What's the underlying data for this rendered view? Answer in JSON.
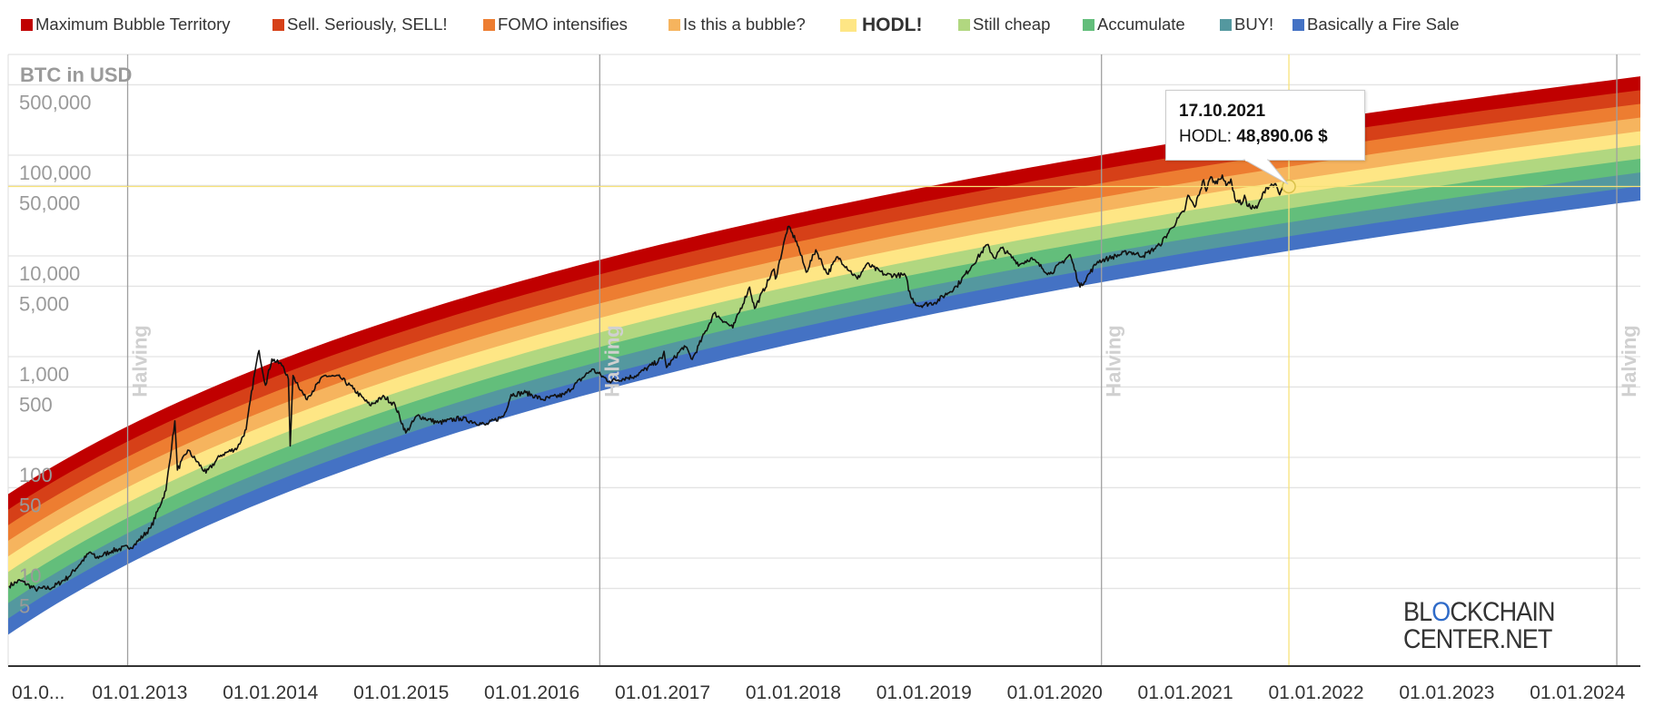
{
  "legend": [
    {
      "label": "Maximum Bubble Territory",
      "color": "#c00000"
    },
    {
      "label": "Sell. Seriously, SELL!",
      "color": "#d64018"
    },
    {
      "label": "FOMO intensifies",
      "color": "#ed7d31"
    },
    {
      "label": "Is this a bubble?",
      "color": "#f6b45e"
    },
    {
      "label": "HODL!",
      "color": "#fee685"
    },
    {
      "label": "Still cheap",
      "color": "#b1d780"
    },
    {
      "label": "Accumulate",
      "color": "#63be7b"
    },
    {
      "label": "BUY!",
      "color": "#54989f"
    },
    {
      "label": "Basically a Fire Sale",
      "color": "#4472c4"
    }
  ],
  "tooltip": {
    "date": "17.10.2021",
    "series": "HODL:",
    "value": "48,890.06 $"
  },
  "logo": {
    "line1_a": "BL",
    "line1_o": "O",
    "line1_b": "CKCHAIN",
    "line2": "CENTER.NET"
  },
  "chart_data": {
    "type": "line",
    "title": "",
    "ylabel": "BTC in USD",
    "yscale": "log",
    "ylim": [
      0.85,
      1000000
    ],
    "xlim": [
      "2012-01-01",
      "2024-06-25"
    ],
    "yticks": [
      {
        "label": "500,000",
        "value": 500000
      },
      {
        "label": "100,000",
        "value": 100000
      },
      {
        "label": "50,000",
        "value": 50000
      },
      {
        "label": "10,000",
        "value": 10000
      },
      {
        "label": "5,000",
        "value": 5000
      },
      {
        "label": "1,000",
        "value": 1000
      },
      {
        "label": "500",
        "value": 500
      },
      {
        "label": "100",
        "value": 100
      },
      {
        "label": "50",
        "value": 50
      },
      {
        "label": "10",
        "value": 10
      },
      {
        "label": "5",
        "value": 5
      }
    ],
    "xticks": [
      {
        "label": "01.0...",
        "date": "2012-01-01"
      },
      {
        "label": "01.01.2013",
        "date": "2013-01-01"
      },
      {
        "label": "01.01.2014",
        "date": "2014-01-01"
      },
      {
        "label": "01.01.2015",
        "date": "2015-01-01"
      },
      {
        "label": "01.01.2016",
        "date": "2016-01-01"
      },
      {
        "label": "01.01.2017",
        "date": "2017-01-01"
      },
      {
        "label": "01.01.2018",
        "date": "2018-01-01"
      },
      {
        "label": "01.01.2019",
        "date": "2019-01-01"
      },
      {
        "label": "01.01.2020",
        "date": "2020-01-01"
      },
      {
        "label": "01.01.2021",
        "date": "2021-01-01"
      },
      {
        "label": "01.01.2022",
        "date": "2022-01-01"
      },
      {
        "label": "01.01.2023",
        "date": "2023-01-01"
      },
      {
        "label": "01.01.2024",
        "date": "2024-01-01"
      }
    ],
    "halvings": [
      {
        "label": "Halving",
        "date": "2012-11-28"
      },
      {
        "label": "Halving",
        "date": "2016-07-09"
      },
      {
        "label": "Halving",
        "date": "2020-05-11"
      },
      {
        "label": "Halving",
        "date": "2024-04-20"
      }
    ],
    "highlight": {
      "date": "2021-10-17",
      "value": 48890.06,
      "color": "#f7e27a"
    },
    "price_series": [
      [
        "2012-01-01",
        5.3
      ],
      [
        "2012-02-01",
        6
      ],
      [
        "2012-03-15",
        4.9
      ],
      [
        "2012-05-01",
        5.1
      ],
      [
        "2012-06-15",
        6.5
      ],
      [
        "2012-08-15",
        11.5
      ],
      [
        "2012-09-01",
        10
      ],
      [
        "2012-10-15",
        11.8
      ],
      [
        "2012-12-15",
        13.3
      ],
      [
        "2013-02-01",
        20
      ],
      [
        "2013-03-15",
        47
      ],
      [
        "2013-04-09",
        230
      ],
      [
        "2013-04-16",
        75
      ],
      [
        "2013-05-15",
        118
      ],
      [
        "2013-07-05",
        70
      ],
      [
        "2013-08-15",
        105
      ],
      [
        "2013-10-01",
        125
      ],
      [
        "2013-10-25",
        190
      ],
      [
        "2013-11-18",
        700
      ],
      [
        "2013-11-30",
        1150
      ],
      [
        "2013-12-18",
        520
      ],
      [
        "2014-01-05",
        950
      ],
      [
        "2014-02-05",
        810
      ],
      [
        "2014-02-20",
        600
      ],
      [
        "2014-02-25",
        130
      ],
      [
        "2014-03-05",
        650
      ],
      [
        "2014-04-10",
        380
      ],
      [
        "2014-06-01",
        650
      ],
      [
        "2014-07-15",
        620
      ],
      [
        "2014-08-20",
        480
      ],
      [
        "2014-10-05",
        330
      ],
      [
        "2014-11-15",
        400
      ],
      [
        "2014-12-15",
        330
      ],
      [
        "2015-01-14",
        175
      ],
      [
        "2015-02-15",
        260
      ],
      [
        "2015-04-15",
        220
      ],
      [
        "2015-06-15",
        245
      ],
      [
        "2015-08-25",
        210
      ],
      [
        "2015-10-15",
        260
      ],
      [
        "2015-11-04",
        420
      ],
      [
        "2015-12-15",
        440
      ],
      [
        "2016-02-01",
        375
      ],
      [
        "2016-04-01",
        420
      ],
      [
        "2016-06-17",
        750
      ],
      [
        "2016-08-05",
        570
      ],
      [
        "2016-10-15",
        640
      ],
      [
        "2016-12-31",
        960
      ],
      [
        "2017-01-05",
        1130
      ],
      [
        "2017-01-12",
        780
      ],
      [
        "2017-03-03",
        1280
      ],
      [
        "2017-03-25",
        940
      ],
      [
        "2017-05-25",
        2700
      ],
      [
        "2017-07-16",
        1930
      ],
      [
        "2017-09-01",
        4900
      ],
      [
        "2017-09-15",
        3000
      ],
      [
        "2017-11-08",
        7400
      ],
      [
        "2017-11-12",
        5900
      ],
      [
        "2017-12-17",
        19500
      ],
      [
        "2018-01-10",
        14000
      ],
      [
        "2018-02-06",
        6900
      ],
      [
        "2018-03-05",
        11500
      ],
      [
        "2018-04-06",
        6600
      ],
      [
        "2018-05-05",
        9800
      ],
      [
        "2018-06-29",
        5900
      ],
      [
        "2018-07-25",
        8300
      ],
      [
        "2018-09-15",
        6500
      ],
      [
        "2018-11-10",
        6400
      ],
      [
        "2018-11-25",
        3900
      ],
      [
        "2018-12-15",
        3200
      ],
      [
        "2019-02-01",
        3450
      ],
      [
        "2019-04-02",
        5000
      ],
      [
        "2019-05-15",
        8000
      ],
      [
        "2019-06-26",
        12900
      ],
      [
        "2019-07-17",
        9500
      ],
      [
        "2019-08-06",
        12000
      ],
      [
        "2019-09-25",
        8200
      ],
      [
        "2019-10-26",
        9500
      ],
      [
        "2019-12-18",
        6600
      ],
      [
        "2020-02-13",
        10300
      ],
      [
        "2020-03-12",
        4900
      ],
      [
        "2020-04-30",
        8800
      ],
      [
        "2020-06-01",
        9500
      ],
      [
        "2020-07-27",
        11000
      ],
      [
        "2020-09-05",
        10000
      ],
      [
        "2020-10-21",
        12800
      ],
      [
        "2020-11-24",
        19000
      ],
      [
        "2020-12-31",
        29000
      ],
      [
        "2021-01-08",
        40000
      ],
      [
        "2021-01-27",
        30500
      ],
      [
        "2021-02-21",
        57000
      ],
      [
        "2021-02-28",
        44000
      ],
      [
        "2021-03-13",
        61000
      ],
      [
        "2021-03-25",
        52000
      ],
      [
        "2021-04-14",
        63500
      ],
      [
        "2021-04-25",
        49000
      ],
      [
        "2021-05-08",
        58000
      ],
      [
        "2021-05-19",
        37000
      ],
      [
        "2021-06-08",
        33000
      ],
      [
        "2021-06-15",
        40000
      ],
      [
        "2021-06-22",
        31500
      ],
      [
        "2021-07-20",
        29800
      ],
      [
        "2021-08-14",
        47500
      ],
      [
        "2021-09-07",
        52000
      ],
      [
        "2021-09-21",
        40500
      ],
      [
        "2021-10-06",
        55000
      ],
      [
        "2021-10-17",
        48890.06
      ]
    ]
  }
}
